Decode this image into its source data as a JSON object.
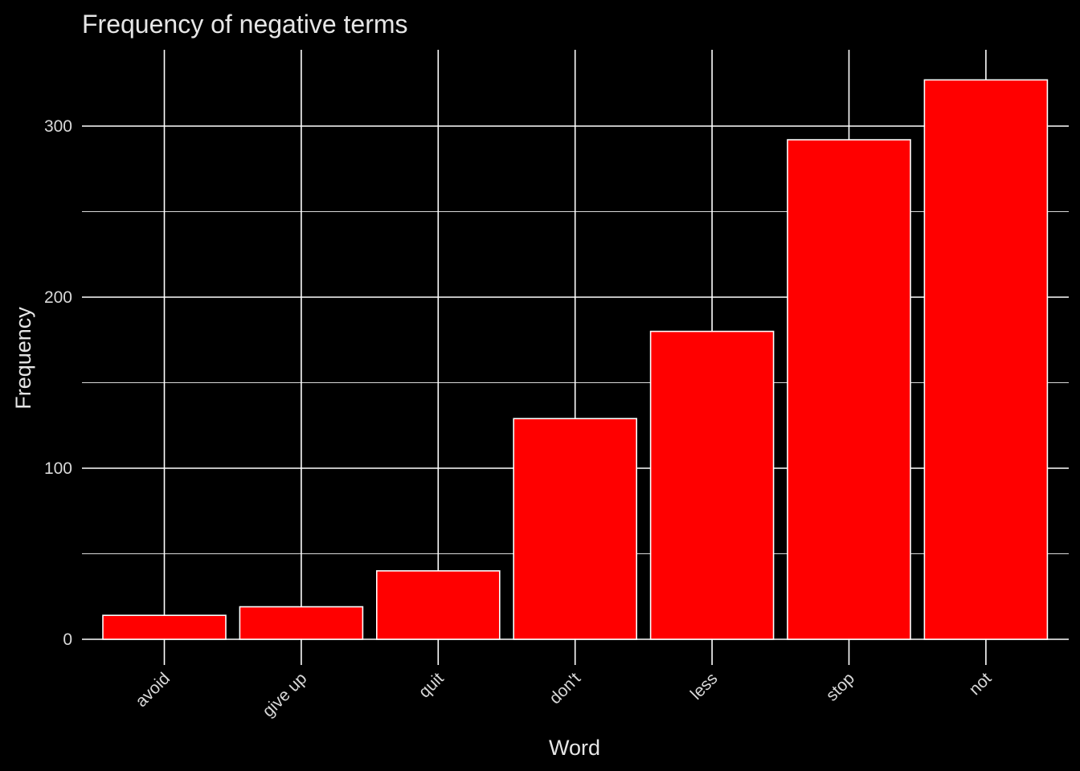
{
  "chart_data": {
    "type": "bar",
    "title": "Frequency of negative terms",
    "xlabel": "Word",
    "ylabel": "Frequency",
    "categories": [
      "avoid",
      "give up",
      "quit",
      "don't",
      "less",
      "stop",
      "not"
    ],
    "values": [
      14,
      19,
      40,
      129,
      180,
      292,
      327
    ],
    "ylim": [
      0,
      344
    ],
    "yticks": [
      0,
      100,
      200,
      300
    ],
    "yticks_minor": [
      50,
      150,
      250
    ],
    "grid": true,
    "legend": "none",
    "x_tick_rotation_deg": -45,
    "colors": {
      "background": "#000000",
      "bar_fill": "#ff0000",
      "bar_outline": "#ffffff",
      "grid": "#ffffff",
      "text": "#e6e6e6"
    }
  }
}
